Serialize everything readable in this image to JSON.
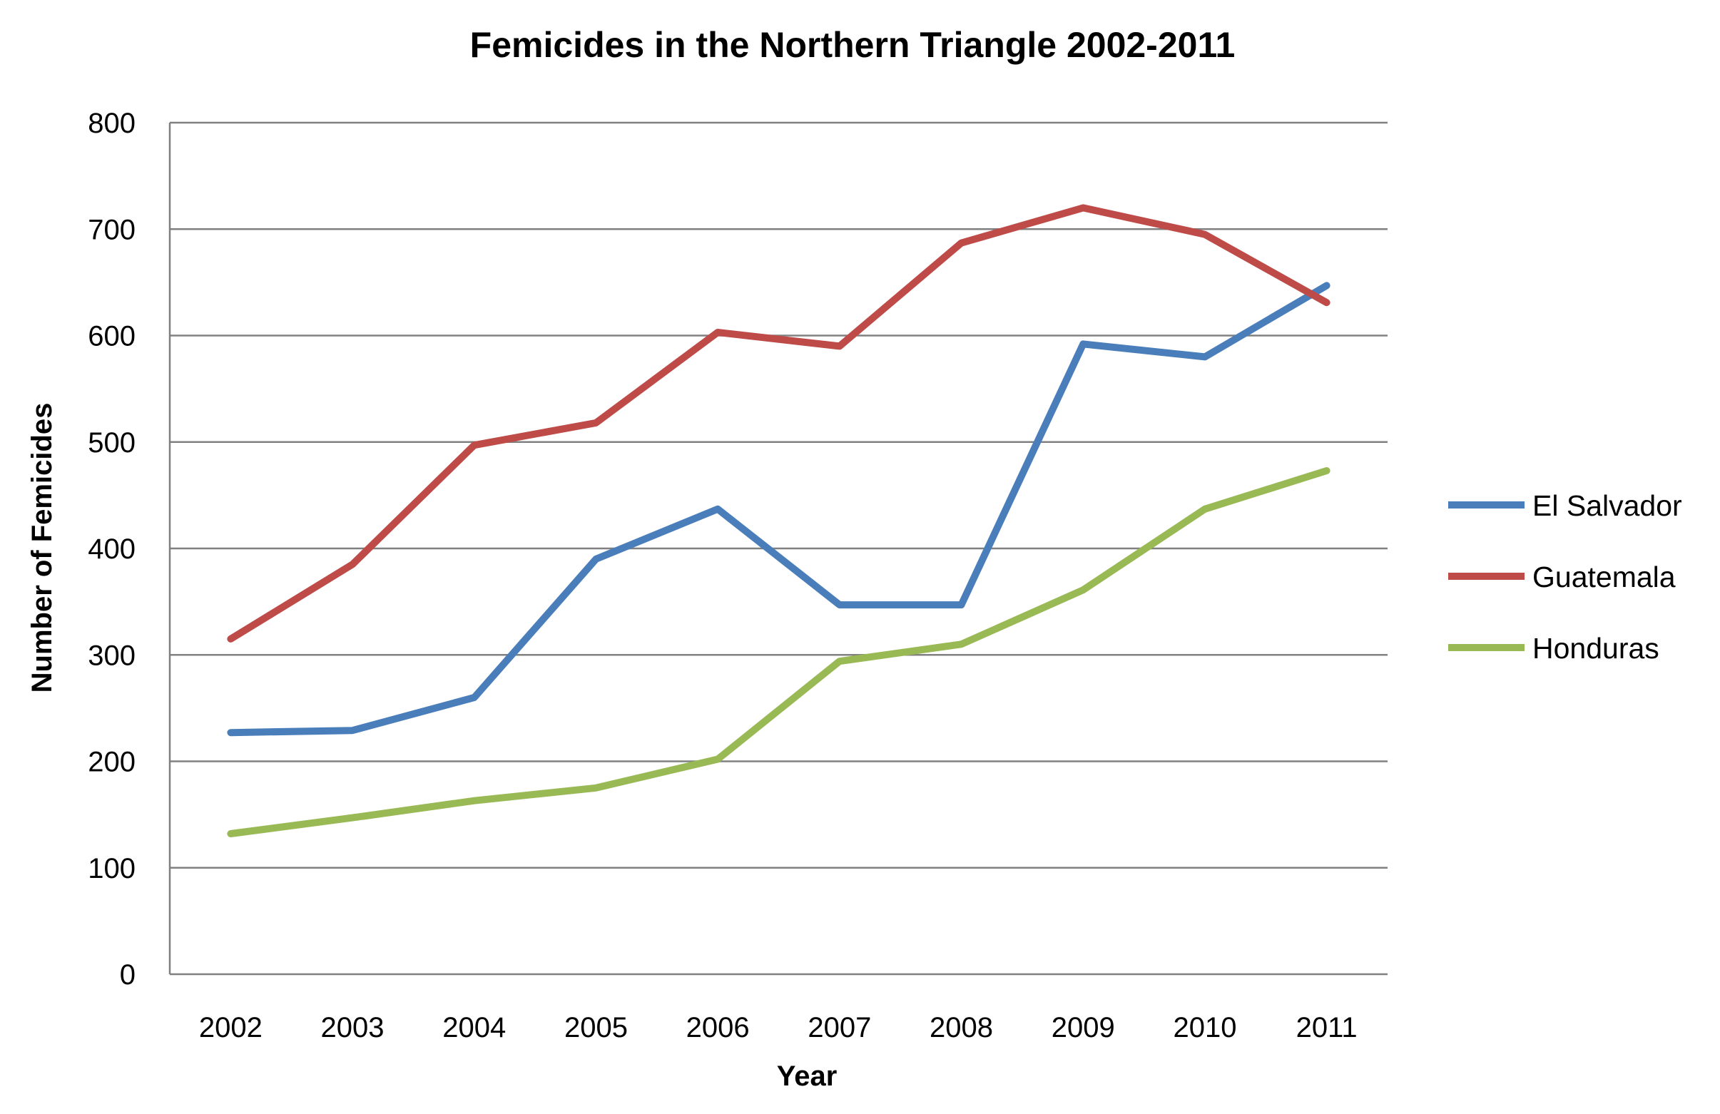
{
  "chart_data": {
    "type": "line",
    "title": "Femicides in the Northern Triangle 2002-2011",
    "xlabel": "Year",
    "ylabel": "Number of Femicides",
    "categories": [
      "2002",
      "2003",
      "2004",
      "2005",
      "2006",
      "2007",
      "2008",
      "2009",
      "2010",
      "2011"
    ],
    "yticks": [
      "0",
      "100",
      "200",
      "300",
      "400",
      "500",
      "600",
      "700",
      "800"
    ],
    "ylim": [
      0,
      800
    ],
    "grid": true,
    "legend_position": "right",
    "series": [
      {
        "name": "El Salvador",
        "color": "#4a7ebb",
        "values": [
          227,
          229,
          260,
          390,
          437,
          347,
          347,
          592,
          580,
          647
        ]
      },
      {
        "name": "Guatemala",
        "color": "#be4b48",
        "values": [
          315,
          385,
          497,
          518,
          603,
          590,
          687,
          720,
          695,
          631
        ]
      },
      {
        "name": "Honduras",
        "color": "#98b954",
        "values": [
          132,
          147,
          163,
          175,
          202,
          294,
          310,
          361,
          437,
          473
        ]
      }
    ]
  }
}
